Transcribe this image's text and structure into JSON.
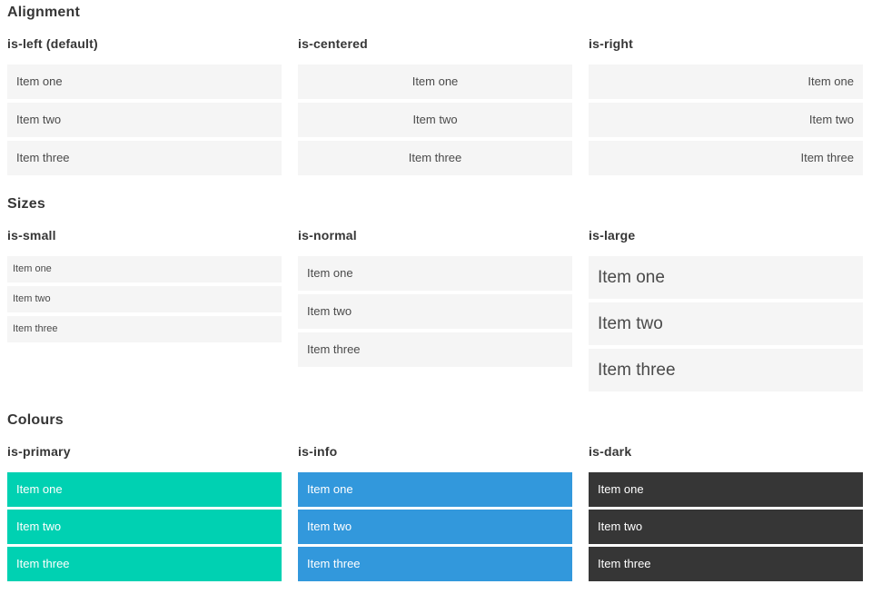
{
  "colors": {
    "primary": "#00d1b2",
    "info": "#3298dc",
    "dark": "#363636",
    "item_bg": "#f5f5f5",
    "item_text": "#4a4a4a",
    "heading": "#363636",
    "on_color_text": "#ffffff"
  },
  "items": [
    "Item one",
    "Item two",
    "Item three"
  ],
  "sections": [
    {
      "title": "Alignment",
      "groups": [
        {
          "label": "is-left (default)"
        },
        {
          "label": "is-centered"
        },
        {
          "label": "is-right"
        }
      ]
    },
    {
      "title": "Sizes",
      "groups": [
        {
          "label": "is-small"
        },
        {
          "label": "is-normal"
        },
        {
          "label": "is-large"
        }
      ]
    },
    {
      "title": "Colours",
      "groups": [
        {
          "label": "is-primary"
        },
        {
          "label": "is-info"
        },
        {
          "label": "is-dark"
        }
      ]
    }
  ]
}
